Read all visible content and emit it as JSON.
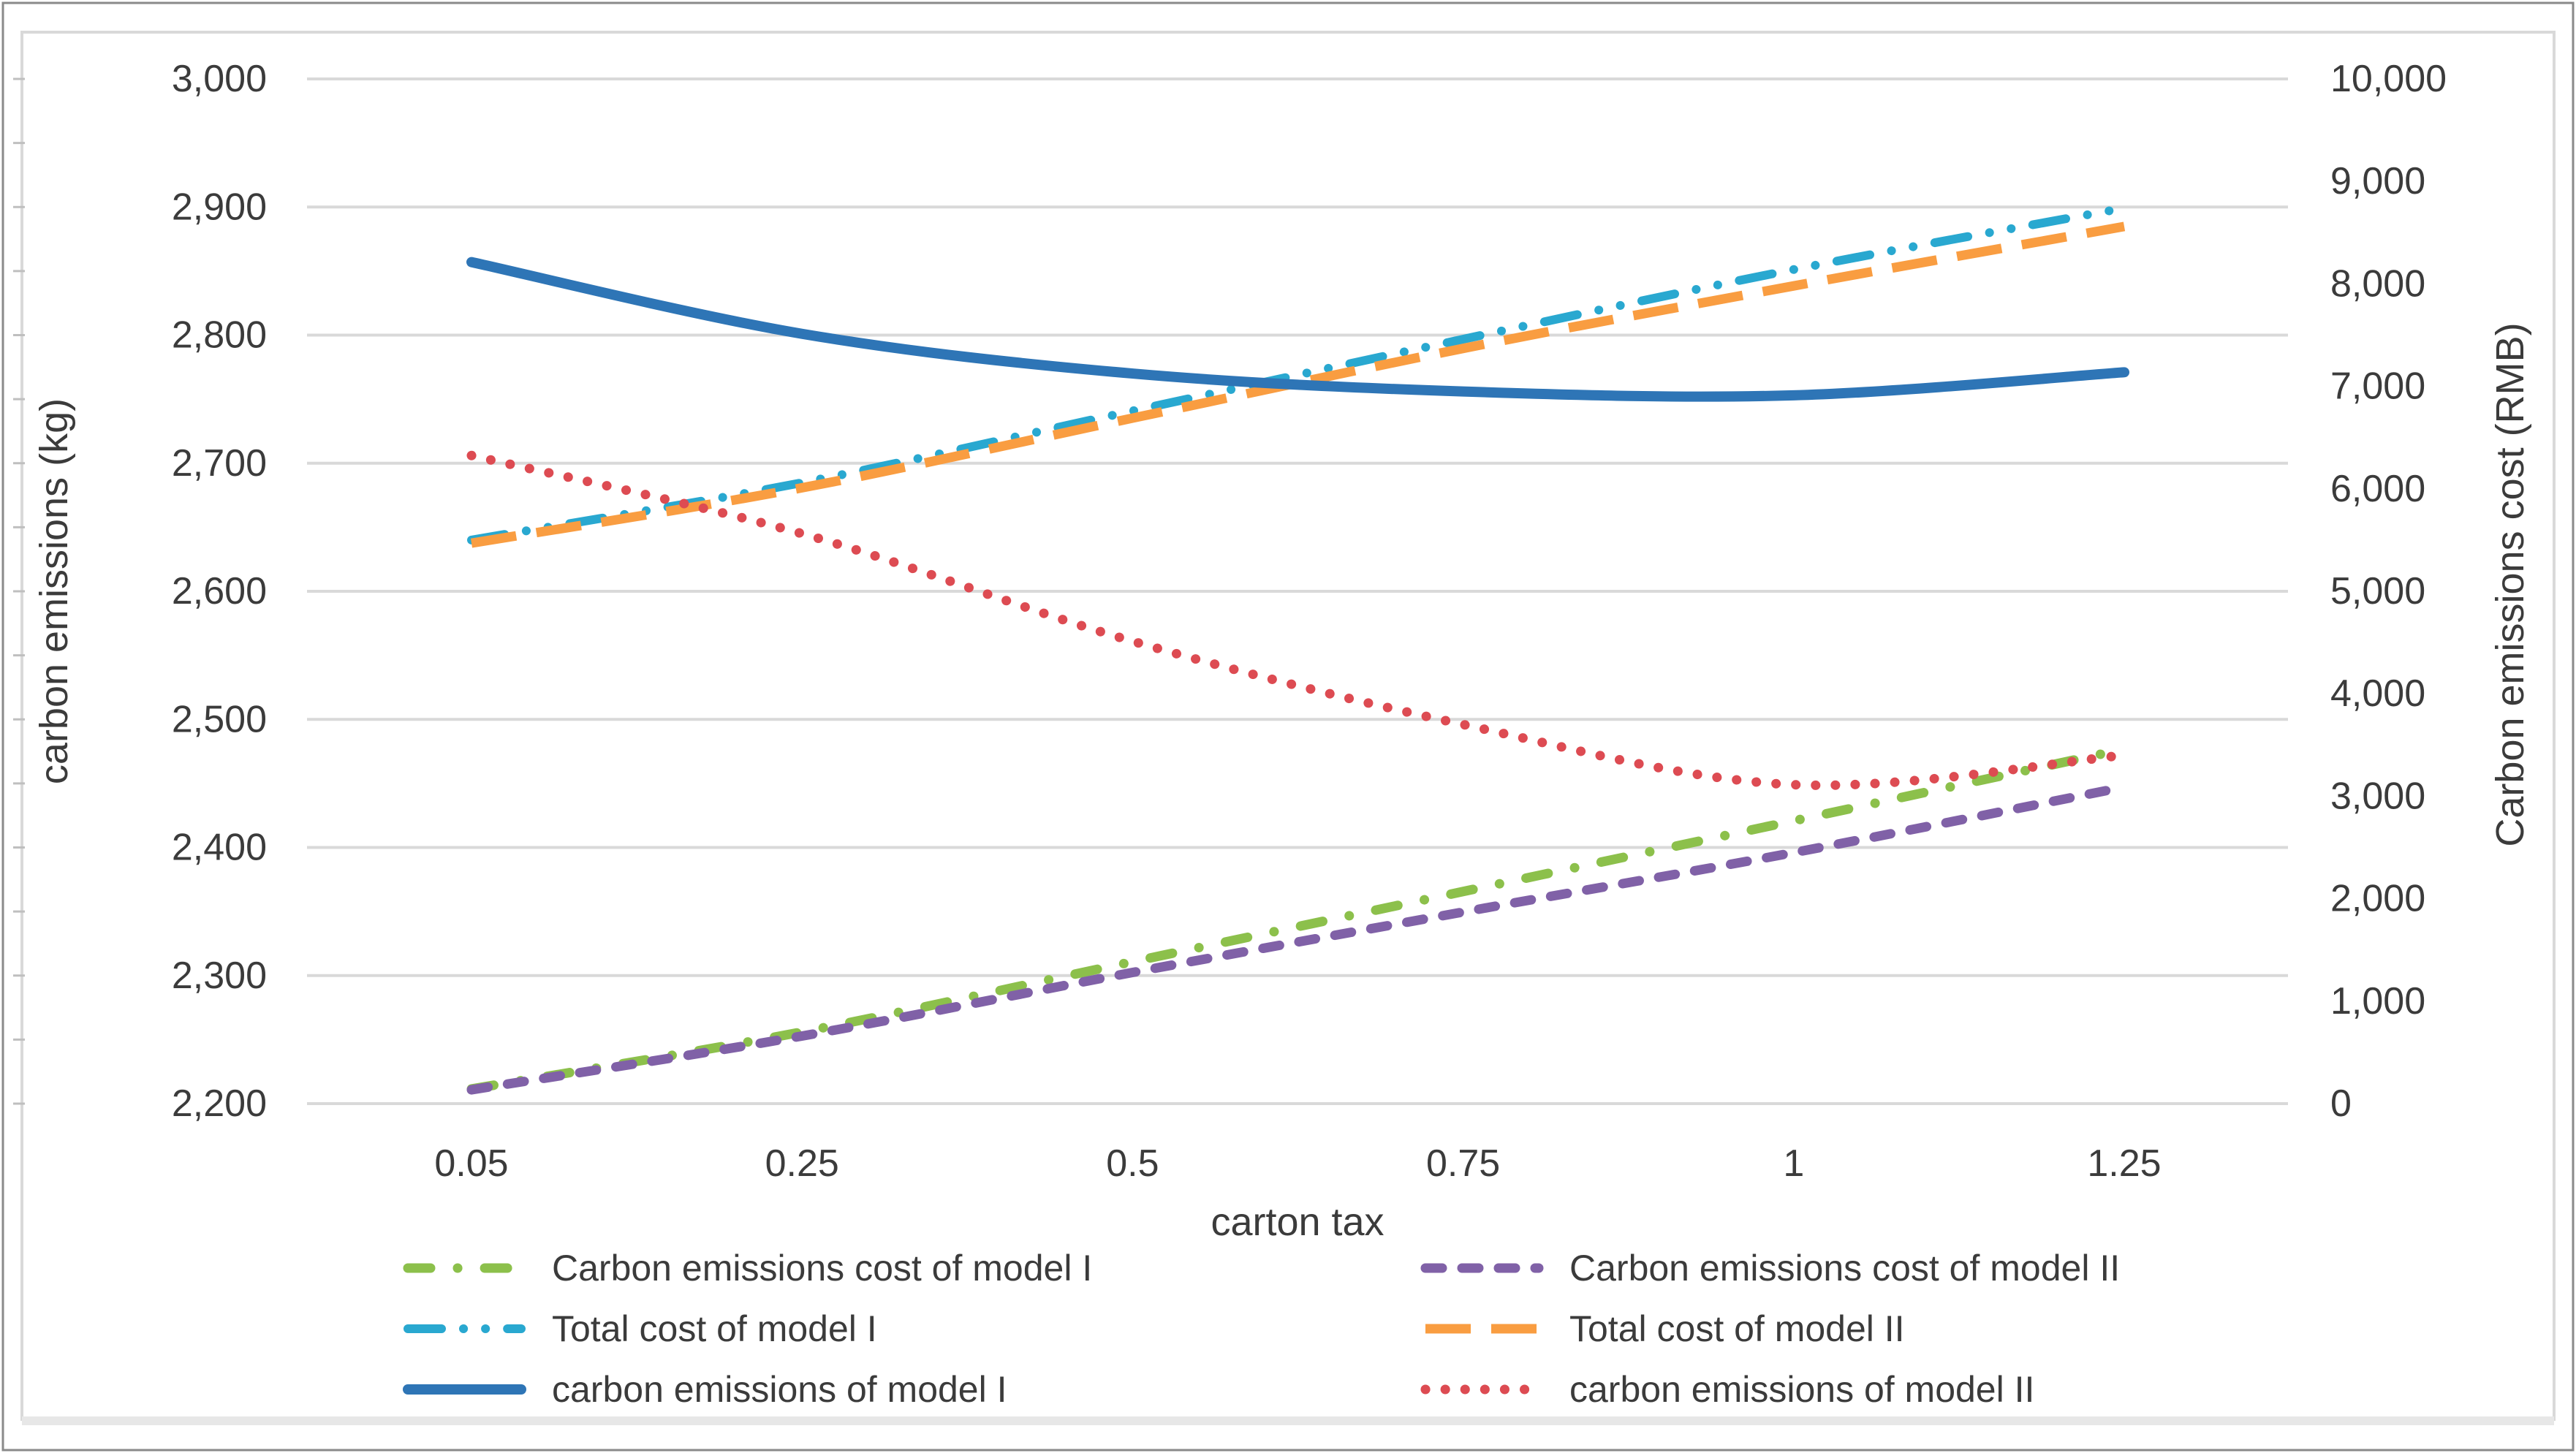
{
  "figure": {
    "background": "#ffffff",
    "outer_border_color": "#8a8a8a",
    "chart_border_color": "#d9d9d9",
    "bottom_strip_color": "#e7e7e7",
    "gridline_color": "#d9d9d9",
    "text_color": "#3b3b3b"
  },
  "chart_data": {
    "type": "line",
    "title": "",
    "grid": "horizontal",
    "legend_position": "bottom",
    "x_axis": {
      "title": "carton tax",
      "values": [
        0.05,
        0.25,
        0.5,
        0.75,
        1,
        1.25
      ],
      "tick_labels": [
        "0.05",
        "0.25",
        "0.5",
        "0.75",
        "1",
        "1.25"
      ]
    },
    "y_left": {
      "title": "carbon emissions (kg)",
      "min": 2200,
      "max": 3000,
      "step": 100,
      "tick_labels": [
        "3,000",
        "2,900",
        "2,800",
        "2,700",
        "2,600",
        "2,500",
        "2,400",
        "2,300",
        "2,200"
      ]
    },
    "y_right": {
      "title": "Carbon emissions cost (RMB)",
      "min": 0,
      "max": 10000,
      "step": 1000,
      "tick_labels": [
        "10,000",
        "9,000",
        "8,000",
        "7,000",
        "6,000",
        "5,000",
        "4,000",
        "3,000",
        "2,000",
        "1,000",
        "0"
      ]
    },
    "series": [
      {
        "name": "Carbon emissions cost of model I",
        "axis": "right",
        "color": "#8cc04b",
        "style": "dash-dot",
        "values": [
          143,
          700,
          1385,
          2070,
          2760,
          3460
        ]
      },
      {
        "name": "Carbon emissions cost of model II",
        "axis": "right",
        "color": "#8061a7",
        "style": "dashed",
        "values": [
          135,
          660,
          1280,
          1870,
          2450,
          3090
        ]
      },
      {
        "name": "Total cost of model I",
        "axis": "right",
        "color": "#29a8d0",
        "style": "dash-dot-dot",
        "values": [
          5500,
          6060,
          6760,
          7460,
          8140,
          8740
        ]
      },
      {
        "name": "Total cost of model II",
        "axis": "right",
        "color": "#f99d41",
        "style": "long-dash",
        "values": [
          5470,
          6010,
          6690,
          7370,
          7980,
          8560
        ]
      },
      {
        "name": "carbon emissions of model I",
        "axis": "left",
        "color": "#2e75b6",
        "style": "solid",
        "values": [
          2857,
          2801,
          2770,
          2756,
          2753,
          2771
        ]
      },
      {
        "name": "carbon emissions of model II",
        "axis": "left",
        "color": "#dd4b52",
        "style": "dotted",
        "values": [
          2706,
          2645,
          2561,
          2496,
          2449,
          2472
        ]
      }
    ],
    "legend_grid": [
      [
        0,
        1
      ],
      [
        2,
        3
      ],
      [
        4,
        5
      ]
    ]
  }
}
